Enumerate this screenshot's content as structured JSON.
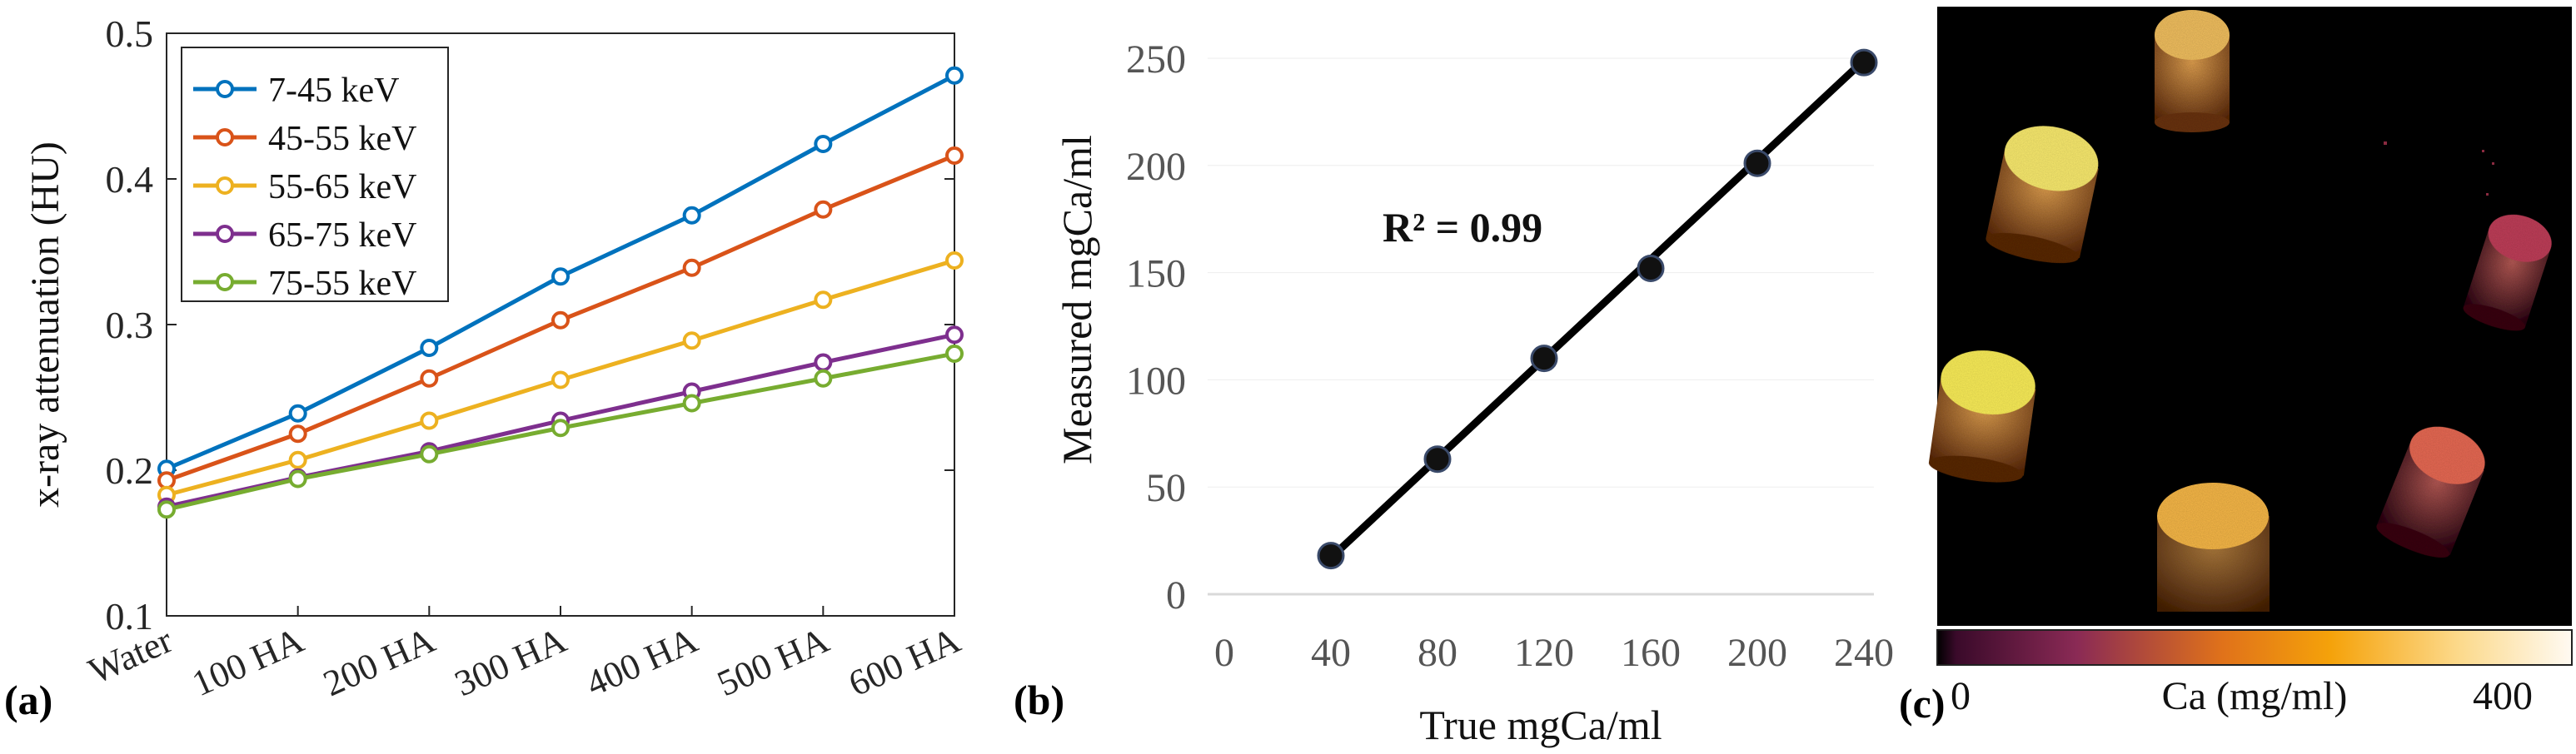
{
  "chart_data": [
    {
      "type": "line",
      "panel_label": "(a)",
      "ylabel": "x-ray attenuation (HU)",
      "xlabel": "",
      "categories": [
        "Water",
        "100 HA",
        "200 HA",
        "300 HA",
        "400 HA",
        "500 HA",
        "600 HA"
      ],
      "ylim": [
        0.1,
        0.5
      ],
      "yticks": [
        "0.1",
        "0.2",
        "0.3",
        "0.4",
        "0.5"
      ],
      "ytick_values": [
        0.1,
        0.2,
        0.3,
        0.4,
        0.5
      ],
      "legend_position": "top-left",
      "series": [
        {
          "name": "7-45 keV",
          "color": "#0072BD",
          "values": [
            0.201,
            0.239,
            0.284,
            0.333,
            0.375,
            0.424,
            0.471
          ]
        },
        {
          "name": "45-55 keV",
          "color": "#D95319",
          "values": [
            0.193,
            0.225,
            0.263,
            0.303,
            0.339,
            0.379,
            0.416
          ]
        },
        {
          "name": "55-65 keV",
          "color": "#EDB120",
          "values": [
            0.183,
            0.207,
            0.234,
            0.262,
            0.289,
            0.317,
            0.344
          ]
        },
        {
          "name": "65-75 keV",
          "color": "#7E2F8E",
          "values": [
            0.175,
            0.195,
            0.213,
            0.234,
            0.254,
            0.274,
            0.293
          ]
        },
        {
          "name": "75-55 keV",
          "color": "#77AC30",
          "values": [
            0.173,
            0.194,
            0.211,
            0.229,
            0.246,
            0.263,
            0.28
          ]
        }
      ]
    },
    {
      "type": "scatter",
      "panel_label": "(b)",
      "xlabel": "True mgCa/ml",
      "ylabel": "Measured mgCa/ml",
      "annotation": "R² = 0.99",
      "xlim": [
        0,
        240
      ],
      "ylim": [
        0,
        250
      ],
      "xticks": [
        "0",
        "40",
        "80",
        "120",
        "160",
        "200",
        "240"
      ],
      "xtick_values": [
        0,
        40,
        80,
        120,
        160,
        200,
        240
      ],
      "yticks": [
        "0",
        "50",
        "100",
        "150",
        "200",
        "250"
      ],
      "ytick_values": [
        0,
        50,
        100,
        150,
        200,
        250
      ],
      "x": [
        40,
        80,
        120,
        160,
        200,
        240
      ],
      "y": [
        18,
        63,
        110,
        152,
        201,
        248
      ],
      "fit": {
        "x": [
          40,
          240
        ],
        "y": [
          17,
          249
        ]
      },
      "marker_color": "#111111",
      "line_color": "#000000"
    },
    {
      "type": "image",
      "panel_label": "(c)",
      "colorbar_label": "Ca (mg/ml)",
      "colorbar_min": "0",
      "colorbar_max": "400",
      "samples": [
        {
          "name": "top",
          "intensity": 300
        },
        {
          "name": "upper-left",
          "intensity": 400
        },
        {
          "name": "right",
          "intensity": 110
        },
        {
          "name": "left",
          "intensity": 420
        },
        {
          "name": "bottom-right",
          "intensity": 200
        },
        {
          "name": "bottom",
          "intensity": 310
        }
      ]
    }
  ]
}
